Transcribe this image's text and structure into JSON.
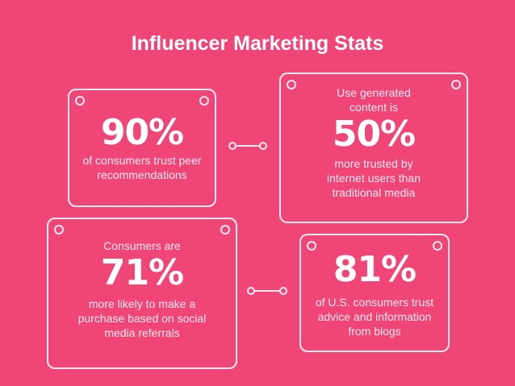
{
  "title": "Influencer Marketing Stats",
  "colors": {
    "background": "#ef4577",
    "foreground": "#ffffff"
  },
  "stats": [
    {
      "pre": "",
      "value": "90%",
      "post": "of consumers trust peer recommendations"
    },
    {
      "pre": "Use generated content is",
      "value": "50%",
      "post": "more trusted by internet users than traditional media"
    },
    {
      "pre": "Consumers are",
      "value": "71%",
      "post": "more likely to make a purchase based on social media referrals"
    },
    {
      "pre": "",
      "value": "81%",
      "post": "of U.S. consumers trust advice and information from blogs"
    }
  ]
}
